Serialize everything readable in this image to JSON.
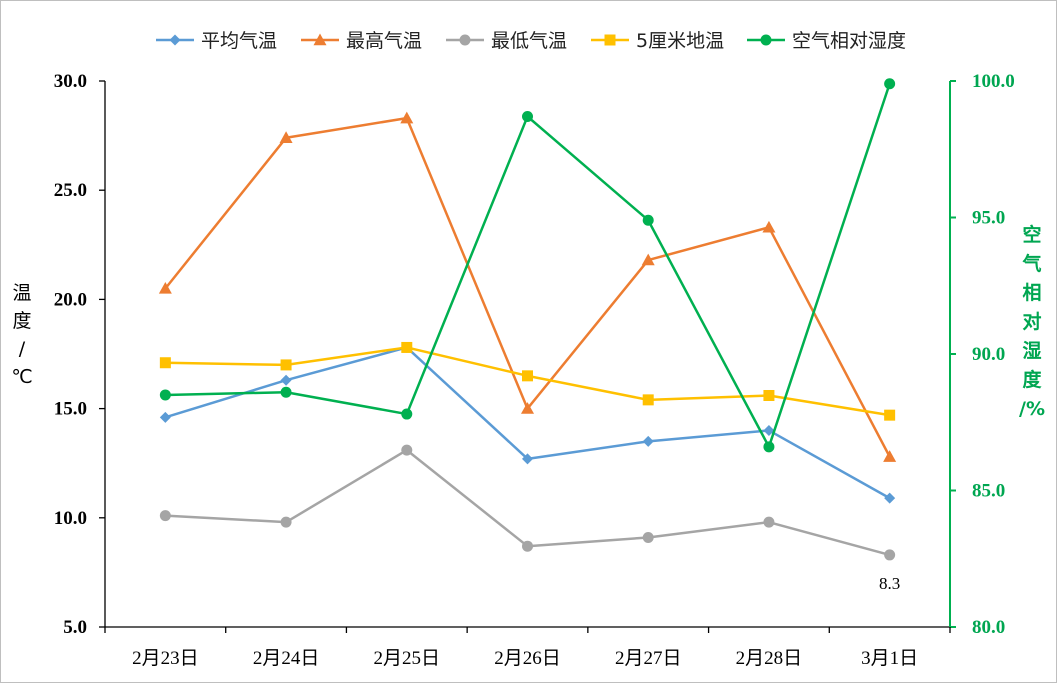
{
  "chart_data": {
    "type": "line",
    "categories": [
      "2月23日",
      "2月24日",
      "2月25日",
      "2月26日",
      "2月27日",
      "2月28日",
      "3月1日"
    ],
    "series": [
      {
        "name": "平均气温",
        "axis": "left",
        "marker": "diamond",
        "color": "#5b9bd5",
        "values": [
          14.6,
          16.3,
          17.8,
          12.7,
          13.5,
          14.0,
          10.9
        ]
      },
      {
        "name": "最高气温",
        "axis": "left",
        "marker": "triangle",
        "color": "#ed7d31",
        "values": [
          20.5,
          27.4,
          28.3,
          15.0,
          21.8,
          23.3,
          12.8
        ]
      },
      {
        "name": "最低气温",
        "axis": "left",
        "marker": "circle",
        "color": "#a5a5a5",
        "values": [
          10.1,
          9.8,
          13.1,
          8.7,
          9.1,
          9.8,
          8.3
        ]
      },
      {
        "name": "5厘米地温",
        "axis": "left",
        "marker": "square",
        "color": "#ffc000",
        "values": [
          17.1,
          17.0,
          17.8,
          16.5,
          15.4,
          15.6,
          14.7
        ]
      },
      {
        "name": "空气相对湿度",
        "axis": "right",
        "marker": "circle",
        "color": "#00b050",
        "values": [
          88.5,
          88.6,
          87.8,
          98.7,
          94.9,
          86.6,
          99.9
        ]
      }
    ],
    "ylabel_left": [
      "温",
      "度",
      "/",
      "℃"
    ],
    "ylabel_right": [
      "空",
      "气",
      "相",
      "对",
      "湿",
      "度",
      "/%"
    ],
    "ylim_left": [
      5.0,
      30.0
    ],
    "yticks_left": [
      "5.0",
      "10.0",
      "15.0",
      "20.0",
      "25.0",
      "30.0"
    ],
    "ylim_right": [
      80.0,
      100.0
    ],
    "yticks_right": [
      "80.0",
      "85.0",
      "90.0",
      "95.0",
      "100.0"
    ],
    "annotations": [
      {
        "series": "最低气温",
        "category": "3月1日",
        "text": "8.3"
      }
    ],
    "legend_position": "top",
    "grid": false
  }
}
